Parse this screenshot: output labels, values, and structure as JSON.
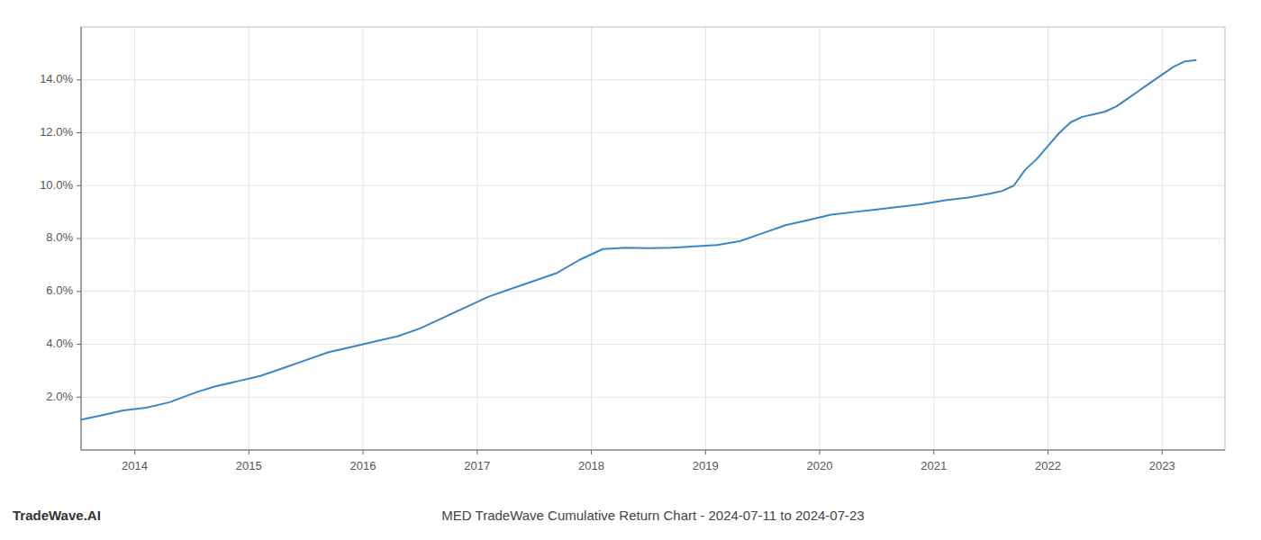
{
  "chart_data": {
    "type": "line",
    "title": "MED TradeWave Cumulative Return Chart - 2024-07-11 to 2024-07-23",
    "annotations": [
      "TradeWave.AI"
    ],
    "color": "#3a86c8",
    "grid": true,
    "x": [
      2013.53,
      2013.7,
      2013.9,
      2014.1,
      2014.3,
      2014.55,
      2014.7,
      2014.9,
      2015.1,
      2015.3,
      2015.5,
      2015.7,
      2015.9,
      2016.1,
      2016.3,
      2016.5,
      2016.7,
      2016.9,
      2017.1,
      2017.3,
      2017.5,
      2017.7,
      2017.9,
      2018.1,
      2018.3,
      2018.5,
      2018.7,
      2018.9,
      2019.1,
      2019.3,
      2019.5,
      2019.7,
      2019.9,
      2020.1,
      2020.3,
      2020.5,
      2020.7,
      2020.9,
      2021.1,
      2021.3,
      2021.5,
      2021.55,
      2021.6,
      2021.7,
      2021.8,
      2021.9,
      2022.0,
      2022.1,
      2022.2,
      2022.3,
      2022.4,
      2022.5,
      2022.6,
      2022.7,
      2022.8,
      2022.9,
      2023.0,
      2023.1,
      2023.2,
      2023.3
    ],
    "values": [
      0.0115,
      0.013,
      0.015,
      0.016,
      0.018,
      0.022,
      0.024,
      0.026,
      0.028,
      0.031,
      0.034,
      0.037,
      0.039,
      0.041,
      0.043,
      0.046,
      0.05,
      0.054,
      0.058,
      0.061,
      0.064,
      0.067,
      0.072,
      0.076,
      0.0765,
      0.0763,
      0.0765,
      0.077,
      0.0775,
      0.079,
      0.082,
      0.085,
      0.087,
      0.089,
      0.09,
      0.091,
      0.092,
      0.093,
      0.0945,
      0.0955,
      0.097,
      0.0975,
      0.098,
      0.1,
      0.106,
      0.11,
      0.115,
      0.12,
      0.124,
      0.126,
      0.127,
      0.128,
      0.13,
      0.133,
      0.136,
      0.139,
      0.142,
      0.145,
      0.147,
      0.1475
    ],
    "xlim": [
      2013.53,
      2023.55
    ],
    "xticks": [
      2014,
      2015,
      2016,
      2017,
      2018,
      2019,
      2020,
      2021,
      2022,
      2023
    ],
    "ylim": [
      0.0,
      0.16
    ],
    "yticks": [
      {
        "value": 0.02,
        "label": "2.0%"
      },
      {
        "value": 0.04,
        "label": "4.0%"
      },
      {
        "value": 0.06,
        "label": "6.0%"
      },
      {
        "value": 0.08,
        "label": "8.0%"
      },
      {
        "value": 0.1,
        "label": "10.0%"
      },
      {
        "value": 0.12,
        "label": "12.0%"
      },
      {
        "value": 0.14,
        "label": "14.0%"
      }
    ]
  }
}
